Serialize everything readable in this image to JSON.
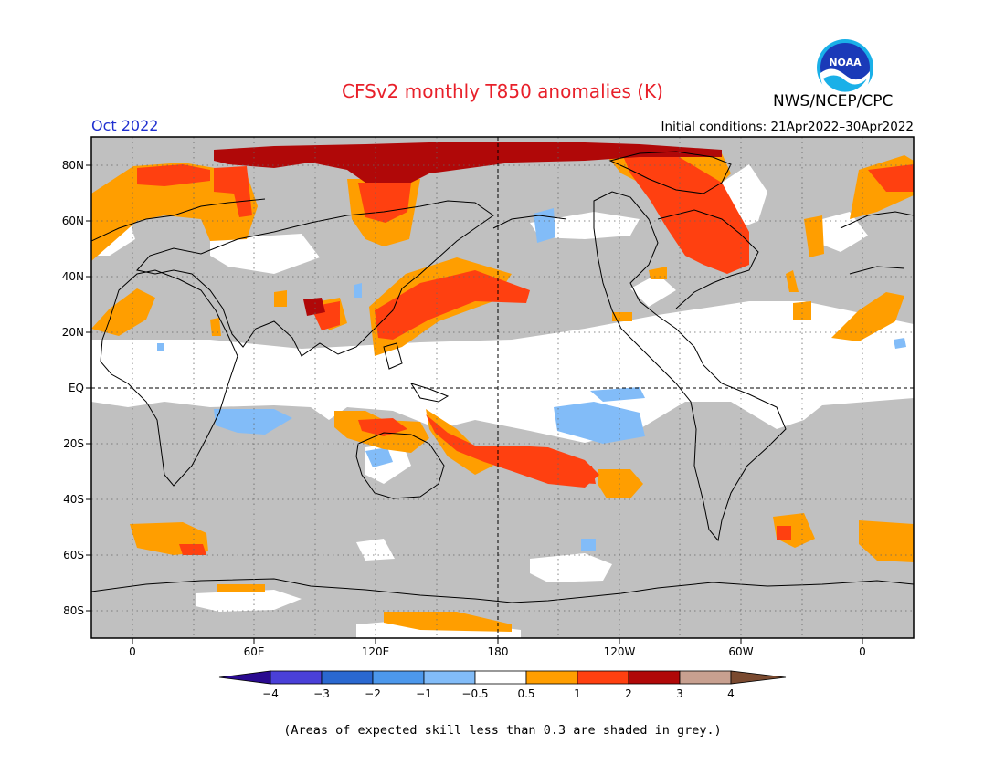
{
  "title": "CFSv2 monthly T850 anomalies (K)",
  "agency": "NWS/NCEP/CPC",
  "logo_text": "NOAA",
  "target_month": "Oct 2022",
  "initial_conditions": "Initial conditions: 21Apr2022–30Apr2022",
  "footnote": "(Areas of expected skill less than 0.3 are shaded in grey.)",
  "map": {
    "lat_labels": [
      "80N",
      "60N",
      "40N",
      "20N",
      "EQ",
      "20S",
      "40S",
      "60S",
      "80S"
    ],
    "lon_labels": [
      "0",
      "60E",
      "120E",
      "180",
      "120W",
      "60W",
      "0"
    ],
    "colors": {
      "grey_low_skill": "#c0c0c0",
      "ocean_neutral": "#ffffff",
      "coast": "#000000"
    }
  },
  "legend": {
    "labels": [
      "−4",
      "−3",
      "−2",
      "−1",
      "−0.5",
      "0.5",
      "1",
      "2",
      "3",
      "4"
    ],
    "colors": [
      "#2a0a90",
      "#4a40d8",
      "#2a68d0",
      "#4c98ec",
      "#82bcf8",
      "#ffffff",
      "#ff9e00",
      "#ff4010",
      "#b00808",
      "#c8a090",
      "#7a4a30"
    ]
  }
}
